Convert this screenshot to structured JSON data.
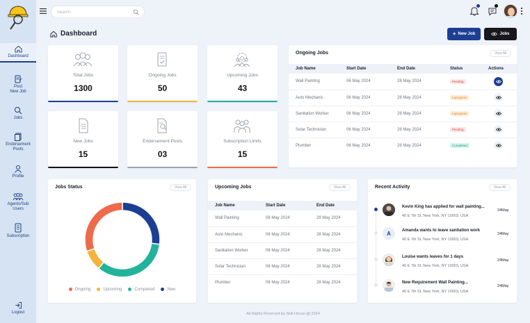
{
  "sidebar": {
    "items": [
      {
        "label": "Dashboard",
        "icon": "home-icon"
      },
      {
        "label": "Post New Job",
        "line1": "Post",
        "line2": "New Job",
        "icon": "post-job-icon"
      },
      {
        "label": "Jobs",
        "icon": "jobs-icon"
      },
      {
        "label": "Endorsement Posts",
        "line1": "Endorsement",
        "line2": "Posts",
        "icon": "endorsement-icon"
      },
      {
        "label": "Profile",
        "icon": "profile-icon"
      },
      {
        "label": "Agents/Sub Users",
        "line1": "Agents/Sub",
        "line2": "Users",
        "icon": "users-icon"
      },
      {
        "label": "Subscription",
        "icon": "subscription-icon"
      }
    ],
    "logout": "Logout"
  },
  "topbar": {
    "search_placeholder": "Search"
  },
  "header": {
    "title": "Dashboard",
    "new_job_label": "New Job",
    "jobs_label": "Jobs"
  },
  "stats": [
    {
      "label": "Total Jobs",
      "value": "1300",
      "color": "#1c3f94"
    },
    {
      "label": "Ongoing Jobs",
      "value": "50",
      "color": "#f2b43b"
    },
    {
      "label": "Upcoming Jobs",
      "value": "43",
      "color": "#23a99a"
    },
    {
      "label": "New Jobs",
      "value": "15",
      "color": "#111111"
    },
    {
      "label": "Endorsement Posts",
      "value": "03",
      "color": "#9ea3ad"
    },
    {
      "label": "Subscription Limits",
      "value": "15",
      "color": "#ee6a3f"
    }
  ],
  "ongoing": {
    "title": "Ongoing Jobs",
    "view_all": "View All",
    "columns": [
      "Job Name",
      "Start Date",
      "End Date",
      "Status",
      "Actions"
    ],
    "rows": [
      {
        "name": "Wall Painting",
        "start": "06 May 2024",
        "end": "28 May 2024",
        "status": "Pending"
      },
      {
        "name": "Auto Mechanic",
        "start": "06 May 2024",
        "end": "28 May 2024",
        "status": "Inprogress"
      },
      {
        "name": "Sanitation Worker",
        "start": "06 May 2024",
        "end": "28 May 2024",
        "status": "Inprogress"
      },
      {
        "name": "Solar Technician",
        "start": "06 May 2024",
        "end": "28 May 2024",
        "status": "Pending"
      },
      {
        "name": "Plumber",
        "start": "06 May 2024",
        "end": "28 May 2024",
        "status": "Completed"
      }
    ]
  },
  "jobs_status": {
    "title": "Jobs Status",
    "view_all": "View All",
    "legend": [
      "Ongoing",
      "Upcoming",
      "Completed",
      "New"
    ]
  },
  "chart_data": {
    "type": "pie",
    "categories": [
      "Ongoing",
      "Upcoming",
      "Completed",
      "New"
    ],
    "values": [
      30,
      9,
      34,
      27
    ],
    "colors": [
      "#ee6a4b",
      "#f2b43b",
      "#23b39a",
      "#1c3f94"
    ],
    "donut": true,
    "legend": "bottom"
  },
  "upcoming": {
    "title": "Upcoming Jobs",
    "view_all": "View All",
    "columns": [
      "Job Name",
      "Start Date",
      "End Date"
    ],
    "rows": [
      {
        "name": "Wall Painting",
        "start": "06 May 2024",
        "end": "28 May 2024"
      },
      {
        "name": "Auto Mechanic",
        "start": "06 May 2024",
        "end": "28 May 2024"
      },
      {
        "name": "Sanitation Worker",
        "start": "06 May 2024",
        "end": "28 May 2024"
      },
      {
        "name": "Solar Technician",
        "start": "06 May 2024",
        "end": "28 May 2024"
      },
      {
        "name": "Plumber",
        "start": "06 May 2024",
        "end": "28 May 2024"
      }
    ]
  },
  "activity": {
    "title": "Recent Activity",
    "view_all": "View All",
    "items": [
      {
        "title": "Kevin King has applied for wall painting...",
        "address": "40 E 7th St, New York, NY 10003, USA",
        "date": "24May",
        "avatar": "photo"
      },
      {
        "title": "Amanda wants to leave sanitation work",
        "address": "40 E 7th St, New York, NY 10003, USA",
        "date": "24May",
        "avatar": "A"
      },
      {
        "title": "Louise wants leaves for 1 days",
        "address": "40 E 7th St, New York, NY 10003, USA",
        "date": "24May",
        "avatar": "photo"
      },
      {
        "title": "New Requirement Wall Painting...",
        "address": "40 E 7th St, New York, NY 10003, USA",
        "date": "24May",
        "avatar": "photo"
      }
    ]
  },
  "footer": "All Rights Reserved by Skill House @ 2024"
}
